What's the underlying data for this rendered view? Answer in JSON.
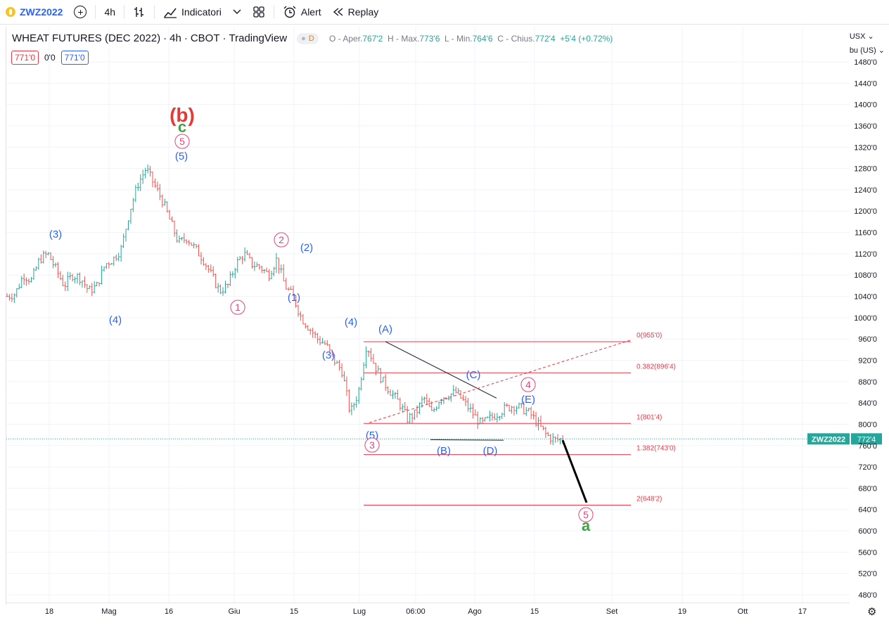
{
  "toolbar": {
    "symbol": "ZWZ2022",
    "interval": "4h",
    "indicators_label": "Indicatori",
    "alert_label": "Alert",
    "replay_label": "Replay"
  },
  "legend": {
    "title": "WHEAT FUTURES (DEC 2022)",
    "interval": "4h",
    "exchange": "CBOT",
    "source": "TradingView",
    "d_tag": "D",
    "ohlc": {
      "open_label": "O - Aper.",
      "open": "767'2",
      "high_label": "H - Max.",
      "high": "773'6",
      "low_label": "L - Min.",
      "low": "764'6",
      "close_label": "C - Chius.",
      "close": "772'4",
      "change": "+5'4 (+0.72%)"
    },
    "sell_price": "771'0",
    "spread": "0'0",
    "buy_price": "771'0"
  },
  "currency": "USX",
  "unit": "bu (US)",
  "current_price_label": {
    "symbol": "ZWZ2022",
    "price": "772'4"
  },
  "colors": {
    "up": "#26a69a",
    "down": "#ef5350",
    "fib": "#f23645",
    "wave_blue": "#2962ff",
    "wave_pink": "#ec407a",
    "wave_green": "#43a047",
    "wave_red": "#e53935"
  },
  "chart_data": {
    "type": "candlestick",
    "y_ticks": [
      1480,
      1440,
      1400,
      1360,
      1320,
      1280,
      1240,
      1200,
      1160,
      1120,
      1080,
      1040,
      1000,
      960,
      920,
      880,
      840,
      800,
      760,
      720,
      680,
      640,
      600,
      560,
      520,
      480
    ],
    "y_tick_labels": [
      "1480'0",
      "1440'0",
      "1400'0",
      "1360'0",
      "1320'0",
      "1280'0",
      "1240'0",
      "1200'0",
      "1160'0",
      "1120'0",
      "1080'0",
      "1040'0",
      "1000'0",
      "960'0",
      "920'0",
      "880'0",
      "840'0",
      "800'0",
      "760'0",
      "720'0",
      "680'0",
      "640'0",
      "600'0",
      "560'0",
      "520'0",
      "480'0"
    ],
    "x_labels": [
      "18",
      "Mag",
      "16",
      "Giu",
      "15",
      "Lug",
      "06:00",
      "Ago",
      "15",
      "Set",
      "19",
      "Ott",
      "17"
    ],
    "price_path": [
      [
        1040,
        1045
      ],
      [
        1080,
        1070
      ],
      [
        1110,
        1120
      ],
      [
        1090,
        1060
      ],
      [
        1080,
        1075
      ],
      [
        1050,
        1060
      ],
      [
        1100,
        1110
      ],
      [
        1130,
        1200
      ],
      [
        1250,
        1280
      ],
      [
        1250,
        1220
      ],
      [
        1180,
        1140
      ],
      [
        1150,
        1130
      ],
      [
        1110,
        1080
      ],
      [
        1050,
        1060
      ],
      [
        1100,
        1120
      ],
      [
        1100,
        1095
      ],
      [
        1080,
        1110
      ],
      [
        1060,
        1040
      ],
      [
        1000,
        980
      ],
      [
        960,
        950
      ],
      [
        920,
        900
      ],
      [
        820,
        860
      ],
      [
        950,
        910
      ],
      [
        880,
        860
      ],
      [
        840,
        810
      ],
      [
        820,
        850
      ],
      [
        820,
        850
      ],
      [
        855,
        860
      ],
      [
        840,
        820
      ],
      [
        800,
        810
      ],
      [
        820,
        830
      ],
      [
        835,
        830
      ],
      [
        820,
        800
      ],
      [
        780,
        770
      ],
      [
        772
      ]
    ],
    "fibonacci": [
      {
        "ratio": "0",
        "price": "955'0",
        "value": 955
      },
      {
        "ratio": "0.382",
        "price": "896'4",
        "value": 896.5
      },
      {
        "ratio": "1",
        "price": "801'4",
        "value": 801.5
      },
      {
        "ratio": "1.382",
        "price": "743'0",
        "value": 743
      },
      {
        "ratio": "2",
        "price": "648'2",
        "value": 648.25
      }
    ],
    "wave_labels": [
      {
        "text": "(b)",
        "color": "red"
      },
      {
        "text": "c",
        "color": "green"
      },
      {
        "text": "5",
        "color": "pink",
        "circled": true
      },
      {
        "text": "(5)",
        "color": "blue"
      },
      {
        "text": "(3)",
        "color": "blue"
      },
      {
        "text": "(4)",
        "color": "blue"
      },
      {
        "text": "2",
        "color": "pink",
        "circled": true
      },
      {
        "text": "(2)",
        "color": "blue"
      },
      {
        "text": "1",
        "color": "pink",
        "circled": true
      },
      {
        "text": "(1)",
        "color": "blue"
      },
      {
        "text": "(4)",
        "color": "blue"
      },
      {
        "text": "(3)",
        "color": "blue"
      },
      {
        "text": "(A)",
        "color": "blue"
      },
      {
        "text": "(5)",
        "color": "blue"
      },
      {
        "text": "3",
        "color": "pink",
        "circled": true
      },
      {
        "text": "(B)",
        "color": "blue"
      },
      {
        "text": "(C)",
        "color": "blue"
      },
      {
        "text": "(D)",
        "color": "blue"
      },
      {
        "text": "4",
        "color": "pink",
        "circled": true
      },
      {
        "text": "(E)",
        "color": "blue"
      },
      {
        "text": "5",
        "color": "pink",
        "circled": true
      },
      {
        "text": "a",
        "color": "green"
      }
    ]
  }
}
